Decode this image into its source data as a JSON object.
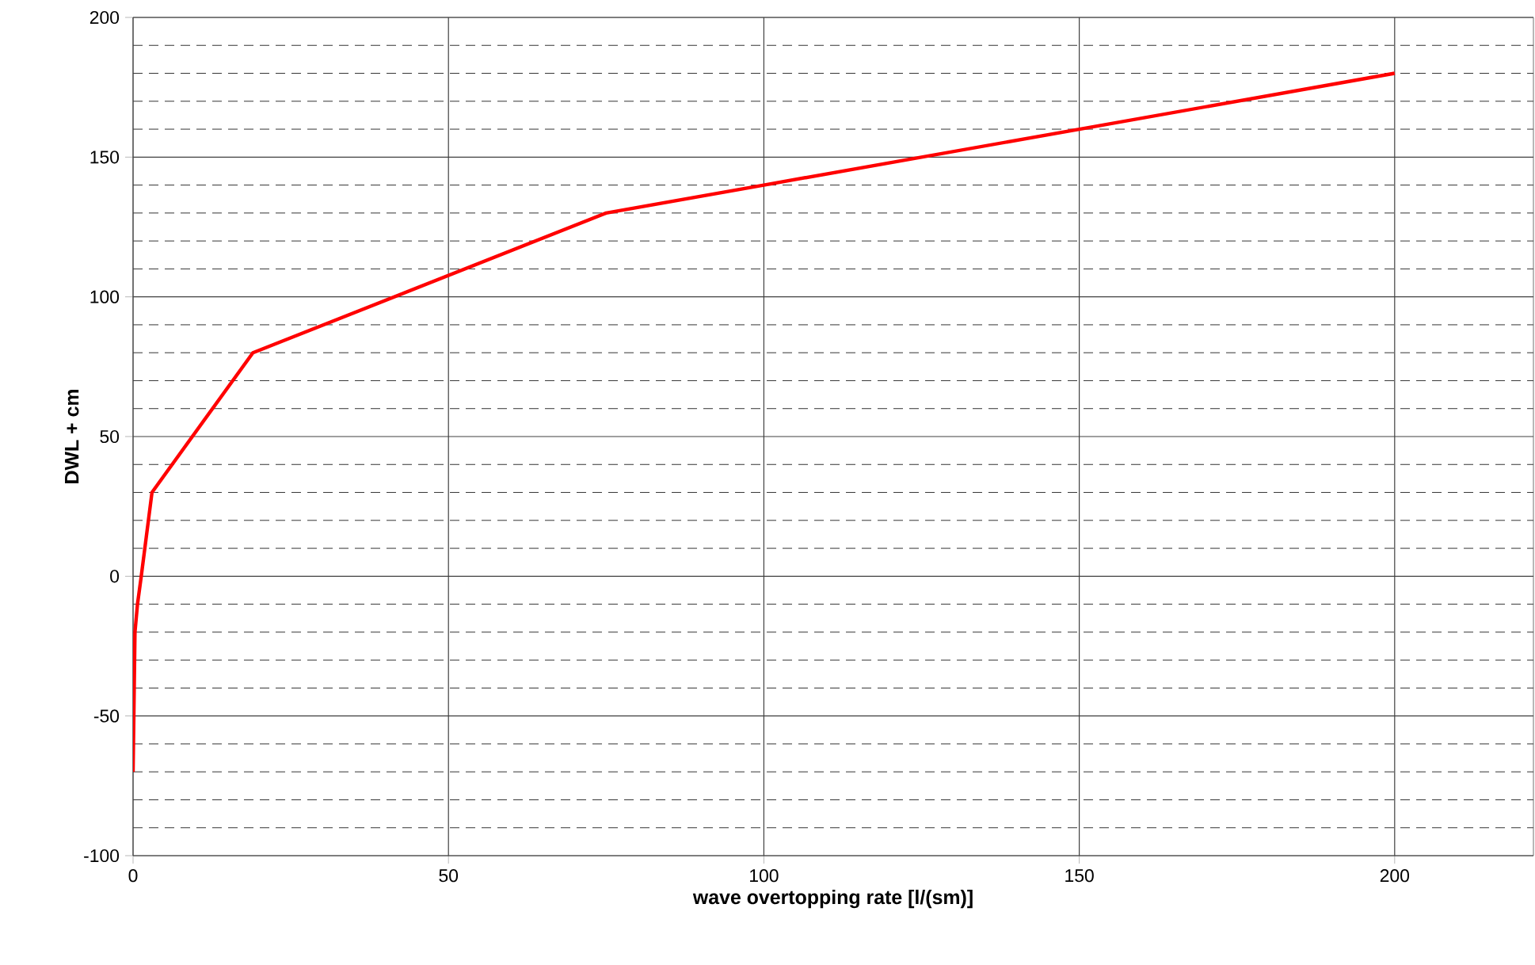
{
  "chart_data": {
    "type": "line",
    "xlabel": "wave overtopping rate [l/(sm)]",
    "ylabel": "DWL + cm",
    "series": [
      {
        "color": "#ff0000",
        "x": [
          0,
          0.3,
          0.7,
          1.3,
          3,
          19,
          75,
          100,
          150,
          200
        ],
        "values": [
          -70,
          -20,
          -10,
          0,
          30,
          80,
          130,
          140,
          160,
          180
        ]
      }
    ],
    "xlim": [
      0,
      222
    ],
    "xticks": [
      0,
      50,
      100,
      150,
      200
    ],
    "ylim": [
      -100,
      200
    ],
    "yticks": [
      -100,
      -50,
      0,
      50,
      100,
      150,
      200
    ],
    "grid": true,
    "marker": "none",
    "line_style": "solid"
  }
}
